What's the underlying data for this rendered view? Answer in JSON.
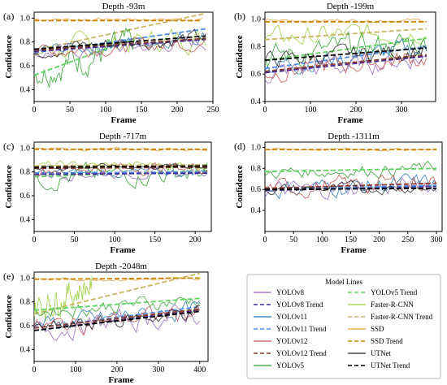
{
  "legend": {
    "title": "Model Lines",
    "entries": [
      {
        "label": "YOLOv8",
        "color": "#9467bd",
        "style": "solid"
      },
      {
        "label": "YOLOv8 Trend",
        "color": "#3b2a9e",
        "style": "dashed"
      },
      {
        "label": "YOLOv11",
        "color": "#1f77b4",
        "style": "solid"
      },
      {
        "label": "YOLOv11 Trend",
        "color": "#4f8fe8",
        "style": "dashed"
      },
      {
        "label": "YOLOv12",
        "color": "#c0504d",
        "style": "solid"
      },
      {
        "label": "YOLOv12 Trend",
        "color": "#8b3a2b",
        "style": "dashed"
      },
      {
        "label": "YOLOv5",
        "color": "#2ca02c",
        "style": "solid"
      },
      {
        "label": "YOLOv5 Trend",
        "color": "#5fd35f",
        "style": "dashed"
      },
      {
        "label": "Faster-R-CNN",
        "color": "#9acd32",
        "style": "solid"
      },
      {
        "label": "Faster-R-CNN Trend",
        "color": "#c8b560",
        "style": "dashed"
      },
      {
        "label": "SSD",
        "color": "#e0a040",
        "style": "solid"
      },
      {
        "label": "SSD Trend",
        "color": "#cc8400",
        "style": "dashed"
      },
      {
        "label": "UTNet",
        "color": "#222222",
        "style": "solid"
      },
      {
        "label": "UTNet Trend",
        "color": "#000000",
        "style": "dashed"
      }
    ]
  },
  "chart_data": [
    {
      "panel": "(a)",
      "title": "Depth -93m",
      "type": "line",
      "xlabel": "Frame",
      "ylabel": "Confidence",
      "xlim": [
        0,
        250
      ],
      "ylim": [
        0.3,
        1.05
      ],
      "xticks": [
        0,
        50,
        100,
        150,
        200,
        250
      ],
      "yticks": [
        0.4,
        0.6,
        0.8,
        1.0
      ],
      "series": [
        {
          "name": "SSD",
          "noisy": true,
          "n": [
            0,
            235
          ],
          "x": [
            0,
            235
          ],
          "y": [
            0.99,
            0.99
          ],
          "amp": 0.01
        },
        {
          "name": "SSD Trend",
          "x": [
            0,
            235
          ],
          "y": [
            0.98,
            0.98
          ]
        },
        {
          "name": "Faster-R-CNN",
          "noisy": true,
          "x": [
            0,
            240
          ],
          "y": [
            0.72,
            0.85
          ],
          "amp": 0.08
        },
        {
          "name": "Faster-R-CNN Trend",
          "x": [
            0,
            240
          ],
          "y": [
            0.73,
            1.04
          ]
        },
        {
          "name": "YOLOv5",
          "noisy": true,
          "x": [
            0,
            140
          ],
          "y": [
            0.55,
            0.78
          ],
          "amp": 0.1
        },
        {
          "name": "YOLOv5 Trend",
          "x": [
            0,
            140
          ],
          "y": [
            0.52,
            0.83
          ]
        },
        {
          "name": "YOLOv11",
          "noisy": true,
          "x": [
            0,
            240
          ],
          "y": [
            0.72,
            0.86
          ],
          "amp": 0.05
        },
        {
          "name": "YOLOv11 Trend",
          "x": [
            0,
            240
          ],
          "y": [
            0.71,
            0.91
          ]
        },
        {
          "name": "YOLOv8",
          "noisy": true,
          "x": [
            0,
            240
          ],
          "y": [
            0.7,
            0.8
          ],
          "amp": 0.05
        },
        {
          "name": "YOLOv8 Trend",
          "x": [
            0,
            240
          ],
          "y": [
            0.72,
            0.82
          ]
        },
        {
          "name": "YOLOv12",
          "noisy": true,
          "x": [
            0,
            240
          ],
          "y": [
            0.72,
            0.8
          ],
          "amp": 0.05
        },
        {
          "name": "YOLOv12 Trend",
          "x": [
            0,
            240
          ],
          "y": [
            0.73,
            0.83
          ]
        },
        {
          "name": "UTNet",
          "noisy": true,
          "x": [
            0,
            240
          ],
          "y": [
            0.74,
            0.84
          ],
          "amp": 0.05
        },
        {
          "name": "UTNet Trend",
          "x": [
            0,
            240
          ],
          "y": [
            0.74,
            0.85
          ]
        }
      ]
    },
    {
      "panel": "(b)",
      "title": "Depth -199m",
      "type": "line",
      "xlabel": "Frame",
      "ylabel": "Confidence",
      "xlim": [
        0,
        375
      ],
      "ylim": [
        0.4,
        1.05
      ],
      "xticks": [
        0,
        100,
        200,
        300
      ],
      "yticks": [
        0.4,
        0.6,
        0.8,
        1.0
      ],
      "series": [
        {
          "name": "SSD",
          "noisy": true,
          "x": [
            0,
            355
          ],
          "y": [
            0.99,
            0.99
          ],
          "amp": 0.01
        },
        {
          "name": "SSD Trend",
          "x": [
            0,
            355
          ],
          "y": [
            0.98,
            0.98
          ]
        },
        {
          "name": "Faster-R-CNN",
          "noisy": true,
          "x": [
            0,
            355
          ],
          "y": [
            0.85,
            0.92
          ],
          "amp": 0.06
        },
        {
          "name": "Faster-R-CNN Trend",
          "x": [
            0,
            355
          ],
          "y": [
            0.85,
            0.93
          ]
        },
        {
          "name": "YOLOv5",
          "noisy": true,
          "x": [
            0,
            355
          ],
          "y": [
            0.72,
            0.83
          ],
          "amp": 0.08
        },
        {
          "name": "YOLOv5 Trend",
          "x": [
            0,
            355
          ],
          "y": [
            0.7,
            0.86
          ]
        },
        {
          "name": "YOLOv11",
          "noisy": true,
          "x": [
            0,
            355
          ],
          "y": [
            0.66,
            0.78
          ],
          "amp": 0.06
        },
        {
          "name": "YOLOv11 Trend",
          "x": [
            0,
            355
          ],
          "y": [
            0.64,
            0.8
          ]
        },
        {
          "name": "YOLOv8",
          "noisy": true,
          "x": [
            0,
            355
          ],
          "y": [
            0.6,
            0.72
          ],
          "amp": 0.06
        },
        {
          "name": "YOLOv8 Trend",
          "x": [
            0,
            355
          ],
          "y": [
            0.61,
            0.73
          ]
        },
        {
          "name": "YOLOv12",
          "noisy": true,
          "x": [
            0,
            355
          ],
          "y": [
            0.62,
            0.72
          ],
          "amp": 0.06
        },
        {
          "name": "YOLOv12 Trend",
          "x": [
            0,
            355
          ],
          "y": [
            0.62,
            0.74
          ]
        },
        {
          "name": "UTNet",
          "noisy": true,
          "x": [
            0,
            355
          ],
          "y": [
            0.7,
            0.78
          ],
          "amp": 0.05
        },
        {
          "name": "UTNet Trend",
          "x": [
            0,
            355
          ],
          "y": [
            0.7,
            0.79
          ]
        }
      ]
    },
    {
      "panel": "(c)",
      "title": "Depth -717m",
      "type": "line",
      "xlabel": "Frame",
      "ylabel": "Confidence",
      "xlim": [
        0,
        220
      ],
      "ylim": [
        0.3,
        1.05
      ],
      "xticks": [
        0,
        50,
        100,
        150,
        200
      ],
      "yticks": [
        0.4,
        0.6,
        0.8,
        1.0
      ],
      "series": [
        {
          "name": "SSD",
          "noisy": true,
          "x": [
            0,
            215
          ],
          "y": [
            0.99,
            0.99
          ],
          "amp": 0.01
        },
        {
          "name": "SSD Trend",
          "x": [
            0,
            215
          ],
          "y": [
            0.99,
            0.99
          ]
        },
        {
          "name": "Faster-R-CNN",
          "noisy": true,
          "x": [
            0,
            215
          ],
          "y": [
            0.85,
            0.86
          ],
          "amp": 0.03
        },
        {
          "name": "Faster-R-CNN Trend",
          "x": [
            0,
            215
          ],
          "y": [
            0.85,
            0.86
          ]
        },
        {
          "name": "YOLOv5",
          "noisy": true,
          "x": [
            0,
            215
          ],
          "y": [
            0.75,
            0.8
          ],
          "amp": 0.07
        },
        {
          "name": "YOLOv5 Trend",
          "x": [
            0,
            215
          ],
          "y": [
            0.76,
            0.81
          ]
        },
        {
          "name": "YOLOv11",
          "noisy": true,
          "x": [
            0,
            215
          ],
          "y": [
            0.79,
            0.8
          ],
          "amp": 0.03
        },
        {
          "name": "YOLOv11 Trend",
          "x": [
            0,
            215
          ],
          "y": [
            0.79,
            0.8
          ]
        },
        {
          "name": "YOLOv8",
          "noisy": true,
          "x": [
            0,
            215
          ],
          "y": [
            0.78,
            0.79
          ],
          "amp": 0.03
        },
        {
          "name": "YOLOv8 Trend",
          "x": [
            0,
            215
          ],
          "y": [
            0.78,
            0.79
          ]
        },
        {
          "name": "YOLOv12",
          "noisy": true,
          "x": [
            0,
            215
          ],
          "y": [
            0.83,
            0.84
          ],
          "amp": 0.04
        },
        {
          "name": "YOLOv12 Trend",
          "x": [
            0,
            215
          ],
          "y": [
            0.83,
            0.84
          ]
        },
        {
          "name": "UTNet",
          "noisy": true,
          "x": [
            0,
            215
          ],
          "y": [
            0.84,
            0.85
          ],
          "amp": 0.02
        },
        {
          "name": "UTNet Trend",
          "x": [
            0,
            215
          ],
          "y": [
            0.84,
            0.85
          ]
        }
      ]
    },
    {
      "panel": "(d)",
      "title": "Depth -1311m",
      "type": "line",
      "xlabel": "Frame",
      "ylabel": "Confidence",
      "xlim": [
        0,
        310
      ],
      "ylim": [
        0.2,
        1.05
      ],
      "xticks": [
        0,
        50,
        100,
        150,
        200,
        250,
        300
      ],
      "yticks": [
        0.4,
        0.6,
        0.8,
        1.0
      ],
      "series": [
        {
          "name": "SSD",
          "noisy": true,
          "x": [
            0,
            300
          ],
          "y": [
            0.98,
            0.98
          ],
          "amp": 0.01
        },
        {
          "name": "SSD Trend",
          "x": [
            0,
            300
          ],
          "y": [
            0.98,
            0.98
          ]
        },
        {
          "name": "YOLOv5",
          "noisy": true,
          "x": [
            0,
            300
          ],
          "y": [
            0.76,
            0.8
          ],
          "amp": 0.05
        },
        {
          "name": "YOLOv5 Trend",
          "x": [
            0,
            300
          ],
          "y": [
            0.77,
            0.8
          ]
        },
        {
          "name": "YOLOv8",
          "noisy": true,
          "x": [
            0,
            300
          ],
          "y": [
            0.58,
            0.64
          ],
          "amp": 0.07
        },
        {
          "name": "YOLOv8 Trend",
          "x": [
            0,
            300
          ],
          "y": [
            0.59,
            0.63
          ]
        },
        {
          "name": "YOLOv11",
          "noisy": true,
          "x": [
            0,
            300
          ],
          "y": [
            0.6,
            0.66
          ],
          "amp": 0.07
        },
        {
          "name": "YOLOv11 Trend",
          "x": [
            0,
            300
          ],
          "y": [
            0.6,
            0.64
          ]
        },
        {
          "name": "YOLOv12",
          "noisy": true,
          "x": [
            0,
            300
          ],
          "y": [
            0.6,
            0.68
          ],
          "amp": 0.07
        },
        {
          "name": "YOLOv12 Trend",
          "x": [
            0,
            300
          ],
          "y": [
            0.61,
            0.66
          ]
        },
        {
          "name": "UTNet",
          "noisy": true,
          "x": [
            0,
            300
          ],
          "y": [
            0.6,
            0.62
          ],
          "amp": 0.04
        },
        {
          "name": "UTNet Trend",
          "x": [
            0,
            300
          ],
          "y": [
            0.6,
            0.61
          ]
        }
      ]
    },
    {
      "panel": "(e)",
      "title": "Depth -2048m",
      "type": "line",
      "xlabel": "Frame",
      "ylabel": "Confidence",
      "xlim": [
        0,
        420
      ],
      "ylim": [
        0.3,
        1.05
      ],
      "xticks": [
        0,
        100,
        200,
        300,
        400
      ],
      "yticks": [
        0.4,
        0.6,
        0.8,
        1.0
      ],
      "series": [
        {
          "name": "SSD",
          "noisy": true,
          "x": [
            0,
            400
          ],
          "y": [
            0.99,
            0.99
          ],
          "amp": 0.01
        },
        {
          "name": "SSD Trend",
          "x": [
            0,
            400
          ],
          "y": [
            0.99,
            1.0
          ]
        },
        {
          "name": "Faster-R-CNN",
          "noisy": true,
          "x": [
            0,
            140
          ],
          "y": [
            0.75,
            0.95
          ],
          "amp": 0.1
        },
        {
          "name": "Faster-R-CNN Trend",
          "x": [
            0,
            400
          ],
          "y": [
            0.7,
            1.04
          ]
        },
        {
          "name": "YOLOv5",
          "noisy": true,
          "x": [
            0,
            400
          ],
          "y": [
            0.72,
            0.82
          ],
          "amp": 0.05
        },
        {
          "name": "YOLOv5 Trend",
          "x": [
            0,
            400
          ],
          "y": [
            0.73,
            0.83
          ]
        },
        {
          "name": "YOLOv11",
          "noisy": true,
          "x": [
            0,
            400
          ],
          "y": [
            0.6,
            0.74
          ],
          "amp": 0.06
        },
        {
          "name": "YOLOv11 Trend",
          "x": [
            0,
            400
          ],
          "y": [
            0.58,
            0.76
          ]
        },
        {
          "name": "YOLOv8",
          "noisy": true,
          "x": [
            0,
            400
          ],
          "y": [
            0.56,
            0.7
          ],
          "amp": 0.07
        },
        {
          "name": "YOLOv8 Trend",
          "x": [
            0,
            400
          ],
          "y": [
            0.56,
            0.73
          ]
        },
        {
          "name": "YOLOv12",
          "noisy": true,
          "x": [
            0,
            400
          ],
          "y": [
            0.58,
            0.72
          ],
          "amp": 0.06
        },
        {
          "name": "YOLOv12 Trend",
          "x": [
            0,
            400
          ],
          "y": [
            0.58,
            0.74
          ]
        },
        {
          "name": "UTNet",
          "noisy": true,
          "x": [
            0,
            400
          ],
          "y": [
            0.56,
            0.72
          ],
          "amp": 0.05
        },
        {
          "name": "UTNet Trend",
          "x": [
            0,
            400
          ],
          "y": [
            0.56,
            0.72
          ]
        }
      ]
    }
  ]
}
